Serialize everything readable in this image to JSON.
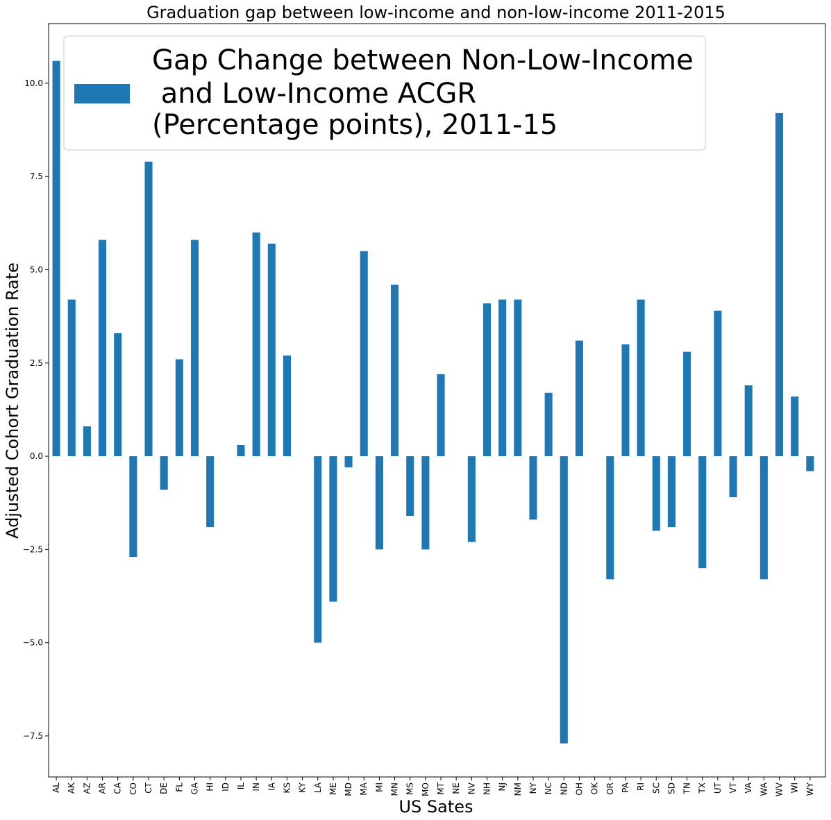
{
  "chart_data": {
    "type": "bar",
    "title": "Graduation gap between low-income and non-low-income 2011-2015",
    "xlabel": "US Sates",
    "ylabel": "Adjusted Cohort Graduation Rate",
    "ylim": [
      -8.6,
      11.6
    ],
    "yticks": [
      -7.5,
      -5.0,
      -2.5,
      0.0,
      2.5,
      5.0,
      7.5,
      10.0
    ],
    "ytick_labels": [
      "−7.5",
      "−5.0",
      "−2.5",
      "0.0",
      "2.5",
      "5.0",
      "7.5",
      "10.0"
    ],
    "grid": false,
    "legend_position": "top-left",
    "categories": [
      "AL",
      "AK",
      "AZ",
      "AR",
      "CA",
      "CO",
      "CT",
      "DE",
      "FL",
      "GA",
      "HI",
      "ID",
      "IL",
      "IN",
      "IA",
      "KS",
      "KY",
      "LA",
      "ME",
      "MD",
      "MA",
      "MI",
      "MN",
      "MS",
      "MO",
      "MT",
      "NE",
      "NV",
      "NH",
      "NJ",
      "NM",
      "NY",
      "NC",
      "ND",
      "OH",
      "OK",
      "OR",
      "PA",
      "RI",
      "SC",
      "SD",
      "TN",
      "TX",
      "UT",
      "VT",
      "VA",
      "WA",
      "WV",
      "WI",
      "WY"
    ],
    "series": [
      {
        "name": "Gap Change between Non-Low-Income\n and Low-Income ACGR\n(Percentage points), 2011-15",
        "legend_lines": [
          "Gap Change between Non-Low-Income",
          " and Low-Income ACGR",
          "(Percentage points), 2011-15"
        ],
        "color": "#1f77b4",
        "values": [
          10.6,
          4.2,
          0.8,
          5.8,
          3.3,
          -2.7,
          7.9,
          -0.9,
          2.6,
          5.8,
          -1.9,
          0.0,
          0.3,
          6.0,
          5.7,
          2.7,
          0.0,
          -5.0,
          -3.9,
          -0.3,
          5.5,
          -2.5,
          4.6,
          -1.6,
          -2.5,
          2.2,
          0.0,
          -2.3,
          4.1,
          4.2,
          4.2,
          -1.7,
          1.7,
          -7.7,
          3.1,
          0.0,
          -3.3,
          3.0,
          4.2,
          -2.0,
          -1.9,
          2.8,
          -3.0,
          3.9,
          -1.1,
          1.9,
          -3.3,
          9.2,
          1.6,
          -0.4
        ]
      }
    ]
  }
}
